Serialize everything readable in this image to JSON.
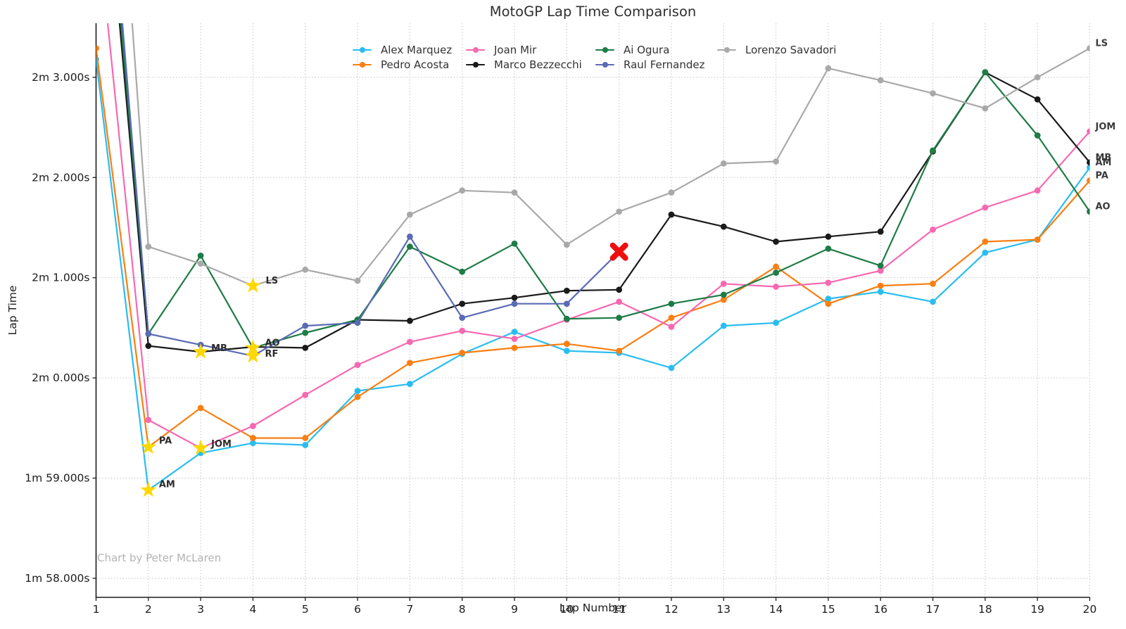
{
  "title": "MotoGP Lap Time Comparison",
  "axes": {
    "x_label": "Lap Number",
    "y_label": "Lap Time"
  },
  "watermark": "Chart by Peter McLaren",
  "chart_data": {
    "type": "line",
    "title": "MotoGP Lap Time Comparison",
    "xlabel": "Lap Number",
    "ylabel": "Lap Time",
    "grid": true,
    "legend_position": "upper center",
    "xlim": [
      1,
      20
    ],
    "ylim": [
      117.81,
      123.54
    ],
    "laps": [
      1,
      2,
      3,
      4,
      5,
      6,
      7,
      8,
      9,
      10,
      11,
      12,
      13,
      14,
      15,
      16,
      17,
      18,
      19,
      20
    ],
    "x_tick_labels": [
      "1",
      "2",
      "3",
      "4",
      "5",
      "6",
      "7",
      "8",
      "9",
      "10",
      "11",
      "12",
      "13",
      "14",
      "15",
      "16",
      "17",
      "18",
      "19",
      "20"
    ],
    "y_ticks": [
      {
        "value": 123,
        "label": "2m 3.000s"
      },
      {
        "value": 122,
        "label": "2m 2.000s"
      },
      {
        "value": 121,
        "label": "2m 1.000s"
      },
      {
        "value": 120,
        "label": "2m 0.000s"
      },
      {
        "value": 119,
        "label": "1m 59.000s"
      },
      {
        "value": 118,
        "label": "1m 58.000s"
      }
    ],
    "star_color": "#FFD700",
    "crash_color": "#EE0F0F",
    "series": [
      {
        "name": "Alex Marquez",
        "code": "AM",
        "color": "#29BDF0",
        "fastest_lap": 2,
        "star_label_offset": [
          15,
          -9
        ],
        "end_label": true,
        "values": [
          123.18,
          118.88,
          119.25,
          119.35,
          119.33,
          119.87,
          119.94,
          120.24,
          120.46,
          120.27,
          120.25,
          120.1,
          120.52,
          120.55,
          120.79,
          120.86,
          120.76,
          121.25,
          121.38,
          122.1
        ]
      },
      {
        "name": "Pedro Acosta",
        "code": "PA",
        "color": "#FA7E11",
        "fastest_lap": 2,
        "star_label_offset": [
          15,
          -10
        ],
        "end_label": true,
        "values": [
          123.29,
          119.31,
          119.7,
          119.4,
          119.4,
          119.81,
          120.15,
          120.25,
          120.3,
          120.34,
          120.27,
          120.6,
          120.78,
          121.11,
          120.74,
          120.92,
          120.94,
          121.36,
          121.38,
          121.97
        ]
      },
      {
        "name": "Joan Mir",
        "code": "JOM",
        "color": "#F768B1",
        "fastest_lap": 3,
        "star_label_offset": [
          15,
          -7
        ],
        "end_label": true,
        "values": [
          124.67,
          119.58,
          119.3,
          119.52,
          119.83,
          120.13,
          120.36,
          120.47,
          120.39,
          120.58,
          120.76,
          120.51,
          120.94,
          120.91,
          120.95,
          121.07,
          121.48,
          121.7,
          121.87,
          122.46
        ]
      },
      {
        "name": "Marco Bezzecchi",
        "code": "MB",
        "color": "#1A1A1A",
        "fastest_lap": 3,
        "star_label_offset": [
          15,
          -6
        ],
        "end_label": true,
        "values": [
          126.17,
          120.32,
          120.26,
          120.31,
          120.3,
          120.58,
          120.57,
          120.74,
          120.8,
          120.87,
          120.88,
          121.63,
          121.51,
          121.36,
          121.41,
          121.46,
          122.26,
          123.05,
          122.78,
          122.15
        ]
      },
      {
        "name": "Ai Ogura",
        "code": "AO",
        "color": "#1E7C45",
        "fastest_lap": 4,
        "star_label_offset": [
          17,
          -8
        ],
        "end_label": true,
        "values": [
          126.35,
          120.44,
          121.22,
          120.3,
          120.45,
          120.58,
          121.31,
          121.06,
          121.34,
          120.59,
          120.6,
          120.74,
          120.83,
          121.05,
          121.29,
          121.12,
          122.27,
          123.05,
          122.42,
          121.66
        ]
      },
      {
        "name": "Raul Fernandez",
        "code": "RF",
        "color": "#5A6BB5",
        "fastest_lap": 4,
        "star_label_offset": [
          17,
          -4
        ],
        "end_label": false,
        "crash_lap": 11,
        "values": [
          126.68,
          120.44,
          120.33,
          120.22,
          120.52,
          120.55,
          121.41,
          120.6,
          120.74,
          120.74,
          121.26
        ]
      },
      {
        "name": "Lorenzo Savadori",
        "code": "LS",
        "color": "#A9A9A9",
        "fastest_lap": 4,
        "star_label_offset": [
          18,
          -8
        ],
        "end_label": true,
        "values": [
          128.52,
          121.31,
          121.14,
          120.92,
          121.08,
          120.97,
          121.63,
          121.87,
          121.85,
          121.33,
          121.66,
          121.85,
          122.14,
          122.16,
          123.09,
          122.97,
          122.84,
          122.69,
          123.0,
          123.29
        ]
      }
    ],
    "legend_columns": [
      [
        0,
        1
      ],
      [
        2,
        3
      ],
      [
        4,
        5
      ],
      [
        6
      ]
    ],
    "legend_column_lefts": [
      501,
      662,
      846,
      1019
    ],
    "legend_top": 60
  }
}
